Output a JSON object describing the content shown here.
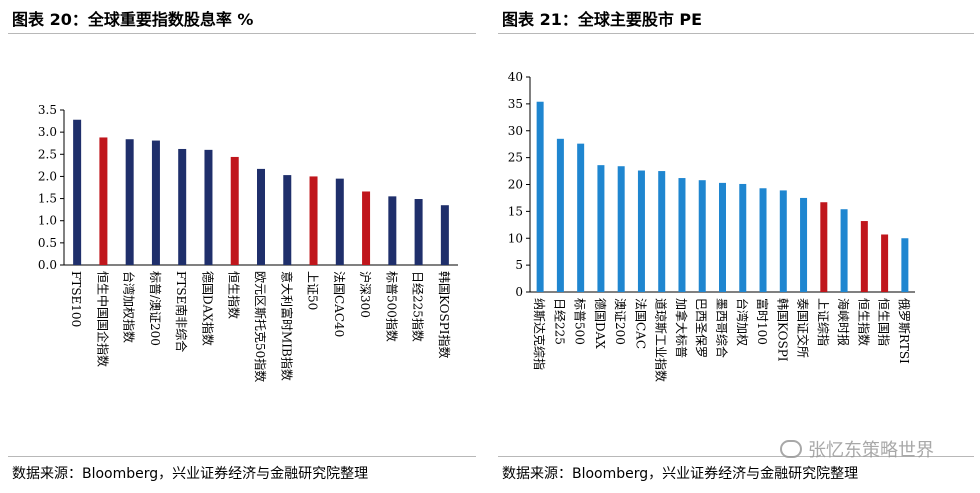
{
  "left": {
    "title": "图表 20：全球重要指数股息率  %",
    "source": "数据来源：Bloomberg，兴业证券经济与金融研究院整理"
  },
  "right": {
    "title": "图表 21：全球主要股市 PE",
    "source": "数据来源：Bloomberg，兴业证券经济与金融研究院整理"
  },
  "watermark": "张忆东策略世界",
  "colors": {
    "navy": "#1f2f6b",
    "red": "#c0161c",
    "blue": "#1f86d0"
  },
  "chart_data": [
    {
      "type": "bar",
      "title": "全球重要指数股息率 %",
      "categories": [
        "FTSE100",
        "恒生中国国企指数",
        "台湾加权指数",
        "标普/澳证200",
        "FTSE南非综合",
        "德国DAX指数",
        "恒生指数",
        "欧元区斯托克50指数",
        "意大利富时MIB指数",
        "上证50",
        "法国CAC40",
        "沪深300",
        "标普500指数",
        "日经225指数",
        "韩国KOSPI指数"
      ],
      "values": [
        3.28,
        2.88,
        2.84,
        2.81,
        2.62,
        2.6,
        2.44,
        2.17,
        2.03,
        2.0,
        1.95,
        1.66,
        1.55,
        1.49,
        1.35
      ],
      "bar_colors": [
        "navy",
        "red",
        "navy",
        "navy",
        "navy",
        "navy",
        "red",
        "navy",
        "navy",
        "red",
        "navy",
        "red",
        "navy",
        "navy",
        "navy"
      ],
      "ylim": [
        0,
        3.5
      ],
      "yticks": [
        "0.0",
        "0.5",
        "1.0",
        "1.5",
        "2.0",
        "2.5",
        "3.0",
        "3.5"
      ],
      "xlabel": "",
      "ylabel": ""
    },
    {
      "type": "bar",
      "title": "全球主要股市 PE",
      "categories": [
        "纳斯达克综指",
        "日经225",
        "标普500",
        "德国DAX",
        "澳证200",
        "法国CAC",
        "道琼斯工业指数",
        "加拿大标普",
        "巴西圣保罗",
        "墨西哥综合",
        "台湾加权",
        "富时100",
        "韩国KOSPI",
        "泰国证交所",
        "上证综指",
        "海峡时报",
        "恒生指数",
        "恒生国指",
        "俄罗斯RTSI"
      ],
      "values": [
        35.4,
        28.5,
        27.6,
        23.6,
        23.4,
        22.6,
        22.5,
        21.2,
        20.8,
        20.3,
        20.1,
        19.3,
        18.9,
        17.5,
        16.7,
        15.4,
        13.2,
        10.7,
        10.0
      ],
      "bar_colors": [
        "blue",
        "blue",
        "blue",
        "blue",
        "blue",
        "blue",
        "blue",
        "blue",
        "blue",
        "blue",
        "blue",
        "blue",
        "blue",
        "blue",
        "red",
        "blue",
        "red",
        "red",
        "blue"
      ],
      "ylim": [
        0,
        40
      ],
      "yticks": [
        "0",
        "5",
        "10",
        "15",
        "20",
        "25",
        "30",
        "35",
        "40"
      ],
      "xlabel": "",
      "ylabel": ""
    }
  ]
}
